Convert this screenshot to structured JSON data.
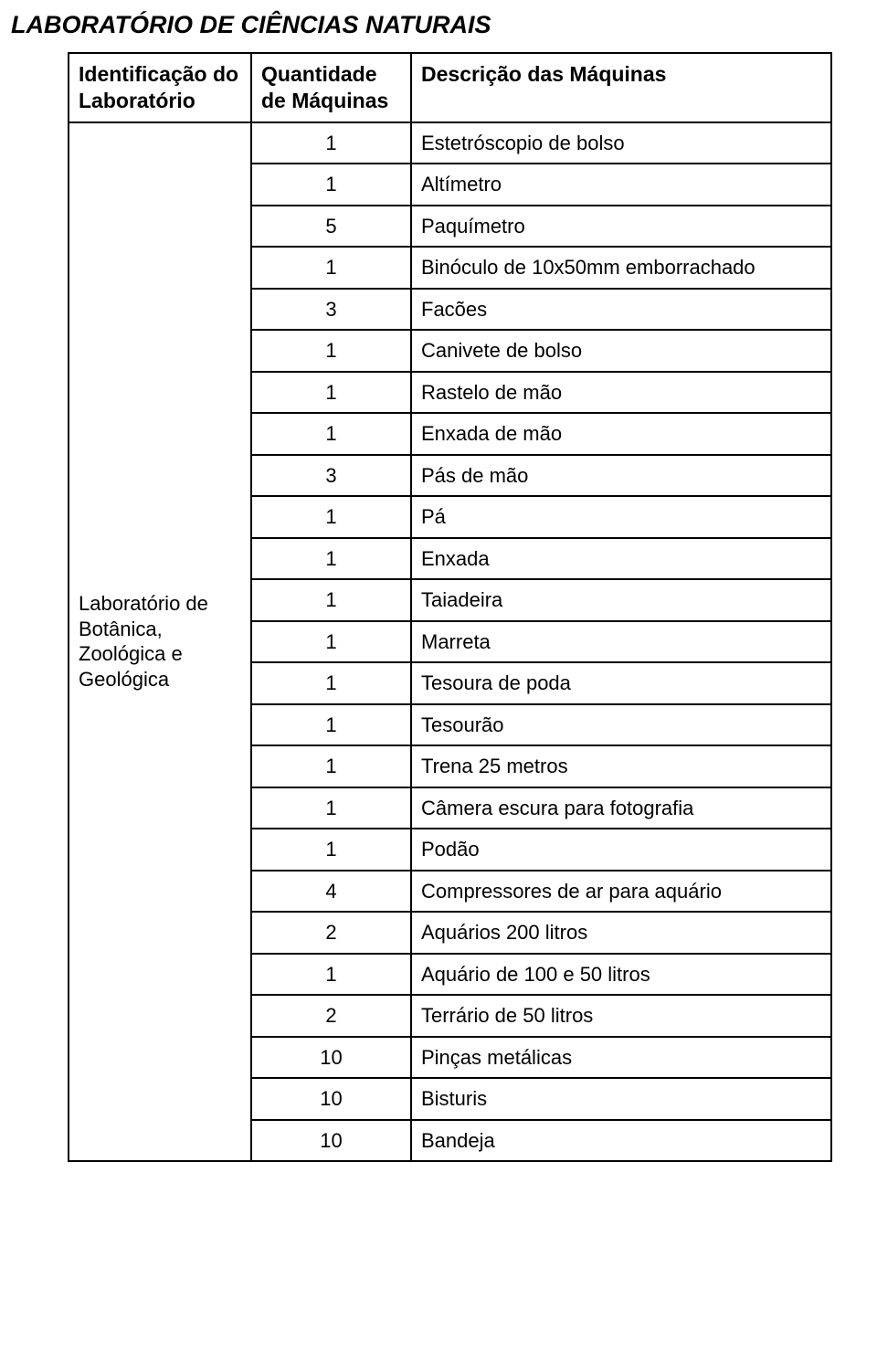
{
  "title": "LABORATÓRIO DE CIÊNCIAS NATURAIS",
  "headers": {
    "col1": "Identificação do Laboratório",
    "col2": "Quantidade de Máquinas",
    "col3": "Descrição das Máquinas"
  },
  "lab_name": "Laboratório de Botânica, Zoológica e Geológica",
  "rows": [
    {
      "qty": "1",
      "desc": "Estetróscopio de bolso"
    },
    {
      "qty": "1",
      "desc": "Altímetro"
    },
    {
      "qty": "5",
      "desc": "Paquímetro"
    },
    {
      "qty": "1",
      "desc": "Binóculo de 10x50mm emborrachado"
    },
    {
      "qty": "3",
      "desc": "Facões"
    },
    {
      "qty": "1",
      "desc": "Canivete de bolso"
    },
    {
      "qty": "1",
      "desc": "Rastelo de mão"
    },
    {
      "qty": "1",
      "desc": "Enxada de mão"
    },
    {
      "qty": "3",
      "desc": "Pás de mão"
    },
    {
      "qty": "1",
      "desc": "Pá"
    },
    {
      "qty": "1",
      "desc": "Enxada"
    },
    {
      "qty": "1",
      "desc": "Taiadeira"
    },
    {
      "qty": "1",
      "desc": "Marreta"
    },
    {
      "qty": "1",
      "desc": "Tesoura de poda"
    },
    {
      "qty": "1",
      "desc": "Tesourão"
    },
    {
      "qty": "1",
      "desc": "Trena 25 metros"
    },
    {
      "qty": "1",
      "desc": "Câmera escura para fotografia"
    },
    {
      "qty": "1",
      "desc": "Podão"
    },
    {
      "qty": "4",
      "desc": "Compressores de ar para aquário"
    },
    {
      "qty": "2",
      "desc": "Aquários 200 litros"
    },
    {
      "qty": "1",
      "desc": "Aquário de 100 e 50 litros"
    },
    {
      "qty": "2",
      "desc": "Terrário de 50 litros"
    },
    {
      "qty": "10",
      "desc": "Pinças metálicas"
    },
    {
      "qty": "10",
      "desc": "Bisturis"
    },
    {
      "qty": "10",
      "desc": "Bandeja"
    }
  ]
}
